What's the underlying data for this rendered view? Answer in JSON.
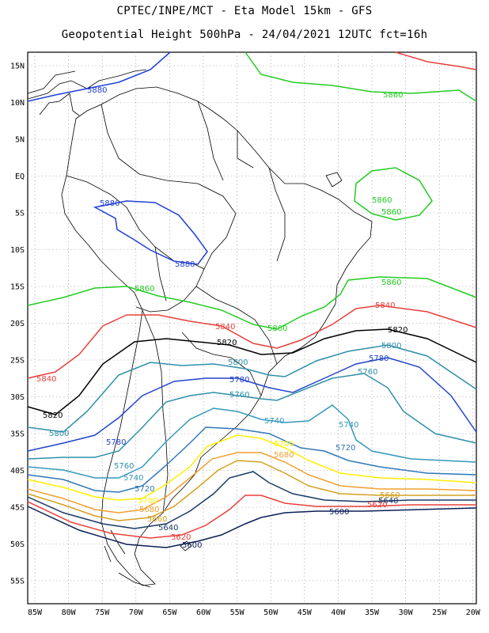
{
  "title_line1": "CPTEC/INPE/MCT -  Eta Model 15km - GFS",
  "title_line2": "Geopotential Height 500hPa - 24/04/2021 12UTC fct=16h",
  "lat_labels": [
    "15N",
    "10N",
    "5N",
    "EQ",
    "5S",
    "10S",
    "15S",
    "20S",
    "25S",
    "30S",
    "35S",
    "40S",
    "45S",
    "50S",
    "55S"
  ],
  "lon_labels": [
    "85W",
    "80W",
    "75W",
    "70W",
    "65W",
    "60W",
    "55W",
    "50W",
    "45W",
    "40W",
    "35W",
    "30W",
    "25W",
    "20W"
  ],
  "contour_labels": {
    "c5880": "5880",
    "c5860": "5860",
    "c5840": "5840",
    "c5820": "5820",
    "c5800": "5800",
    "c5780": "5780",
    "c5760": "5760",
    "c5740": "5740",
    "c5720": "5720",
    "c5700": "5700",
    "c5680": "5680",
    "c5660": "5660",
    "c5640": "5640",
    "c5620": "5620",
    "c5600": "5600"
  },
  "colors": {
    "c5880": "#1f3fd6",
    "c5860": "#22cc22",
    "c5840": "#e8403a",
    "c5820": "#000000",
    "c5800": "#2f8fa8",
    "c5780": "#2244cc",
    "c5760": "#2f8fa8",
    "c5740": "#3399bb",
    "c5720": "#2f77b8",
    "c5700": "#ffee00",
    "c5680": "#f0a030",
    "c5660": "#d4a020",
    "c5640": "#1a3a66",
    "c5620": "#e8403a",
    "c5600": "#0b1f55"
  }
}
